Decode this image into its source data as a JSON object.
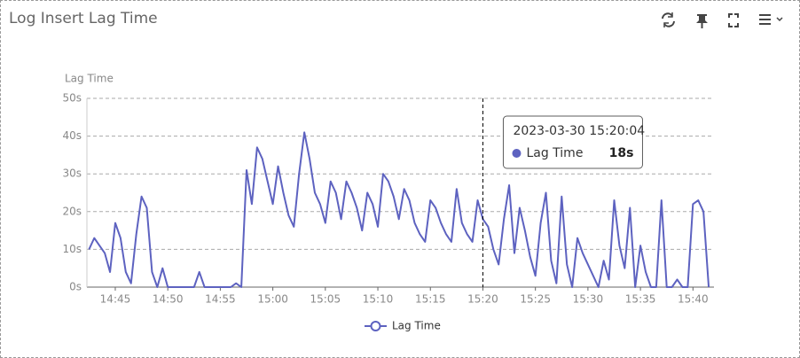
{
  "chart_data": {
    "type": "line",
    "title": "Log Insert Lag Time",
    "y_label": "Lag Time",
    "x": [
      882.5,
      883,
      883.5,
      884,
      884.5,
      885,
      885.5,
      886,
      886.5,
      887,
      887.5,
      888,
      888.5,
      889,
      889.5,
      890,
      890.5,
      891,
      891.5,
      892,
      892.5,
      893,
      893.5,
      894,
      894.5,
      895,
      895.5,
      896,
      896.5,
      897,
      897.5,
      898,
      898.5,
      899,
      899.5,
      900,
      900.5,
      901,
      901.5,
      902,
      902.5,
      903,
      903.5,
      904,
      904.5,
      905,
      905.5,
      906,
      906.5,
      907,
      907.5,
      908,
      908.5,
      909,
      909.5,
      910,
      910.5,
      911,
      911.5,
      912,
      912.5,
      913,
      913.5,
      914,
      914.5,
      915,
      915.5,
      916,
      916.5,
      917,
      917.5,
      918,
      918.5,
      919,
      919.5,
      920,
      920.5,
      921,
      921.5,
      922,
      922.5,
      923,
      923.5,
      924,
      924.5,
      925,
      925.5,
      926,
      926.5,
      927,
      927.5,
      928,
      928.5,
      929,
      929.5,
      930,
      930.5,
      931,
      931.5,
      932,
      932.5,
      933,
      933.5,
      934,
      934.5,
      935,
      935.5,
      936,
      936.5,
      937,
      937.5,
      938,
      938.5,
      939,
      939.5,
      940,
      940.5,
      941,
      941.5
    ],
    "series": [
      {
        "name": "Lag Time",
        "color": "#5d62c0",
        "values": [
          10,
          13,
          11,
          9,
          4,
          17,
          13,
          4,
          1,
          14,
          24,
          21,
          4,
          0,
          5,
          0,
          0,
          0,
          0,
          0,
          0,
          4,
          0,
          0,
          0,
          0,
          0,
          0,
          1,
          0,
          31,
          22,
          37,
          34,
          28,
          22,
          32,
          25,
          19,
          16,
          30,
          41,
          34,
          25,
          22,
          17,
          28,
          25,
          18,
          28,
          25,
          21,
          15,
          25,
          22,
          16,
          30,
          28,
          24,
          18,
          26,
          23,
          17,
          14,
          12,
          23,
          21,
          17,
          14,
          12,
          26,
          17,
          14,
          12,
          23,
          18,
          16,
          10,
          6,
          18,
          27,
          9,
          21,
          15,
          8,
          3,
          17,
          25,
          7,
          1,
          24,
          6,
          0,
          13,
          9,
          6,
          3,
          0,
          7,
          2,
          23,
          11,
          5,
          21,
          0,
          11,
          4,
          0,
          0,
          23,
          0,
          0,
          2,
          0,
          0,
          22,
          23,
          20,
          0
        ]
      }
    ],
    "xlim": [
      882.3,
      942
    ],
    "xticks": [
      {
        "value": 885,
        "label": "14:45"
      },
      {
        "value": 890,
        "label": "14:50"
      },
      {
        "value": 895,
        "label": "14:55"
      },
      {
        "value": 900,
        "label": "15:00"
      },
      {
        "value": 905,
        "label": "15:05"
      },
      {
        "value": 910,
        "label": "15:10"
      },
      {
        "value": 915,
        "label": "15:15"
      },
      {
        "value": 920,
        "label": "15:20"
      },
      {
        "value": 925,
        "label": "15:25"
      },
      {
        "value": 930,
        "label": "15:30"
      },
      {
        "value": 935,
        "label": "15:35"
      },
      {
        "value": 940,
        "label": "15:40"
      }
    ],
    "ylim": [
      0,
      50
    ],
    "yticks": [
      {
        "value": 0,
        "label": "0s"
      },
      {
        "value": 10,
        "label": "10s"
      },
      {
        "value": 20,
        "label": "20s"
      },
      {
        "value": 30,
        "label": "30s"
      },
      {
        "value": 40,
        "label": "40s"
      },
      {
        "value": 50,
        "label": "50s"
      }
    ],
    "grid": true,
    "tooltip": {
      "x": 920,
      "label": "2023-03-30 15:20:04",
      "value": 18,
      "value_label": "18s"
    }
  }
}
